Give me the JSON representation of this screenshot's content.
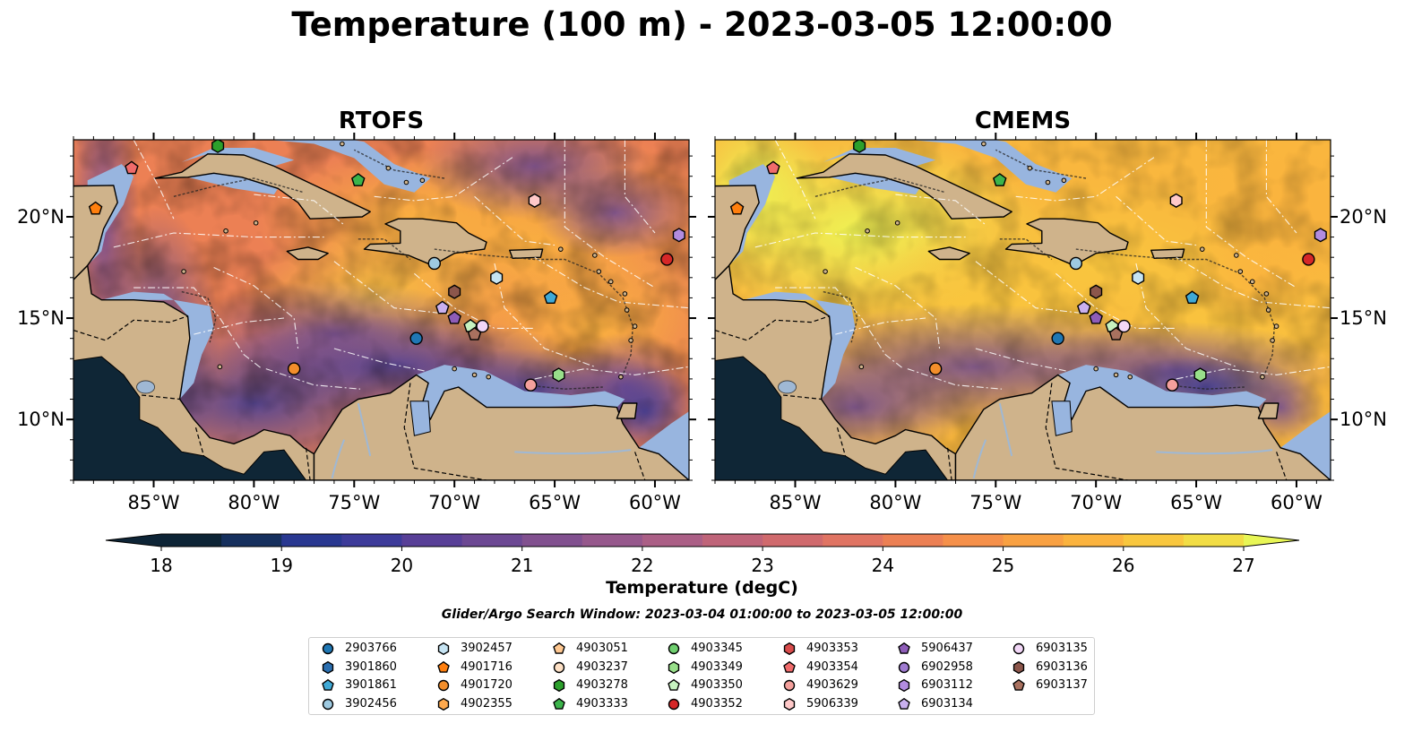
{
  "figure": {
    "title": "Temperature (100 m) - 2023-03-05 12:00:00",
    "window_text": "Glider/Argo Search Window: 2023-03-04 01:00:00 to 2023-03-05 12:00:00"
  },
  "panels": [
    {
      "title": "RTOFS",
      "palette": "warm"
    },
    {
      "title": "CMEMS",
      "palette": "hot"
    }
  ],
  "axes": {
    "lon_ticks": [
      "85°W",
      "80°W",
      "75°W",
      "70°W",
      "65°W",
      "60°W"
    ],
    "lon_values": [
      -85,
      -80,
      -75,
      -70,
      -65,
      -60
    ],
    "lat_ticks": [
      "10°N",
      "15°N",
      "20°N"
    ],
    "lat_values": [
      10,
      15,
      20
    ],
    "lon_range": [
      -89.0,
      -58.3
    ],
    "lat_range": [
      7.0,
      23.8
    ]
  },
  "colorbar": {
    "label": "Temperature (degC)",
    "ticks": [
      "18",
      "19",
      "20",
      "21",
      "22",
      "23",
      "24",
      "25",
      "26",
      "27"
    ],
    "tick_values": [
      18,
      19,
      20,
      21,
      22,
      23,
      24,
      25,
      26,
      27
    ],
    "range": [
      18,
      27
    ],
    "step": 0.5,
    "extend": "both",
    "colormap": "thermal",
    "colors": [
      "#0d2436",
      "#16305e",
      "#293891",
      "#3d3b9a",
      "#583f97",
      "#6c4893",
      "#81508f",
      "#96588c",
      "#ab5f86",
      "#bf6479",
      "#d06a6d",
      "#e07463",
      "#ec8054",
      "#f5904a",
      "#f9a142",
      "#fbb33e",
      "#f9c73e",
      "#f2dd45",
      "#e8f656"
    ]
  },
  "map_colors": {
    "land": "#cfb38b",
    "shelf": "#98b5df",
    "pacific": "#0f2636",
    "river": "#9fb8d4"
  },
  "floats": [
    {
      "id": "2903766",
      "shape": "circle",
      "color": "#1f77b4",
      "lon": -71.9,
      "lat": 14.0,
      "lon2": -71.9,
      "lat2": 14.0
    },
    {
      "id": "3901860",
      "shape": "hexagon",
      "color": "#2b6fb0"
    },
    {
      "id": "3901861",
      "shape": "pentagon",
      "color": "#3fa9d6",
      "lon": -65.2,
      "lat": 16.0,
      "lon2": -65.2,
      "lat2": 16.0
    },
    {
      "id": "3902456",
      "shape": "circle",
      "color": "#9ecae1",
      "lon": -71.0,
      "lat": 17.7,
      "lon2": -71.0,
      "lat2": 17.7
    },
    {
      "id": "3902457",
      "shape": "hexagon",
      "color": "#c6e4f3",
      "lon": -67.9,
      "lat": 17.0,
      "lon2": -67.9,
      "lat2": 17.0
    },
    {
      "id": "4901716",
      "shape": "pentagon",
      "color": "#ff7f0e",
      "lon": -87.9,
      "lat": 20.4,
      "lon2": -87.9,
      "lat2": 20.4
    },
    {
      "id": "4901720",
      "shape": "circle",
      "color": "#f28e2b",
      "lon": -78.0,
      "lat": 12.5,
      "lon2": -78.0,
      "lat2": 12.5
    },
    {
      "id": "4902355",
      "shape": "hexagon",
      "color": "#ffa94d"
    },
    {
      "id": "4903051",
      "shape": "pentagon",
      "color": "#ffc891"
    },
    {
      "id": "4903237",
      "shape": "circle",
      "color": "#fde0c5"
    },
    {
      "id": "4903278",
      "shape": "hexagon",
      "color": "#2ca02c",
      "lon": -81.8,
      "lat": 23.5,
      "lon2": -81.8,
      "lat2": 23.5
    },
    {
      "id": "4903333",
      "shape": "pentagon",
      "color": "#3cb44b",
      "lon": -74.8,
      "lat": 21.8,
      "lon2": -74.8,
      "lat2": 21.8
    },
    {
      "id": "4903345",
      "shape": "circle",
      "color": "#6fcf6f"
    },
    {
      "id": "4903349",
      "shape": "hexagon",
      "color": "#98df8a",
      "lon": -64.8,
      "lat": 12.2,
      "lon2": -64.8,
      "lat2": 12.2
    },
    {
      "id": "4903350",
      "shape": "pentagon",
      "color": "#c7f2c0",
      "lon": -69.2,
      "lat": 14.6,
      "lon2": -69.2,
      "lat2": 14.6
    },
    {
      "id": "4903352",
      "shape": "circle",
      "color": "#d62728",
      "lon": -59.4,
      "lat": 17.9,
      "lon2": -59.4,
      "lat2": 17.9
    },
    {
      "id": "4903353",
      "shape": "hexagon",
      "color": "#d94c4c"
    },
    {
      "id": "4903354",
      "shape": "pentagon",
      "color": "#f06b6b",
      "lon": -86.1,
      "lat": 22.4,
      "lon2": -86.1,
      "lat2": 22.4
    },
    {
      "id": "4903629",
      "shape": "circle",
      "color": "#f4a09c",
      "lon": -66.2,
      "lat": 11.7,
      "lon2": -66.2,
      "lat2": 11.7
    },
    {
      "id": "5906339",
      "shape": "hexagon",
      "color": "#ffc9c9",
      "lon": -66.0,
      "lat": 20.8,
      "lon2": -66.0,
      "lat2": 20.8
    },
    {
      "id": "5906437",
      "shape": "pentagon",
      "color": "#8e5db8",
      "lon": -70.0,
      "lat": 15.0,
      "lon2": -70.0,
      "lat2": 15.0
    },
    {
      "id": "6902958",
      "shape": "circle",
      "color": "#9f7bd0"
    },
    {
      "id": "6903112",
      "shape": "hexagon",
      "color": "#b28ce0",
      "lon": -58.8,
      "lat": 19.1,
      "lon2": -58.8,
      "lat2": 19.1
    },
    {
      "id": "6903134",
      "shape": "pentagon",
      "color": "#c9b0ef",
      "lon": -70.6,
      "lat": 15.5,
      "lon2": -70.6,
      "lat2": 15.5
    },
    {
      "id": "6903135",
      "shape": "circle",
      "color": "#f2d7f7",
      "lon": -68.6,
      "lat": 14.6,
      "lon2": -68.6,
      "lat2": 14.6
    },
    {
      "id": "6903136",
      "shape": "hexagon",
      "color": "#8c564b",
      "lon": -70.0,
      "lat": 16.3,
      "lon2": -70.0,
      "lat2": 16.3
    },
    {
      "id": "6903137",
      "shape": "pentagon",
      "color": "#a9715f",
      "lon": -69.0,
      "lat": 14.2,
      "lon2": -69.0,
      "lat2": 14.2
    }
  ]
}
